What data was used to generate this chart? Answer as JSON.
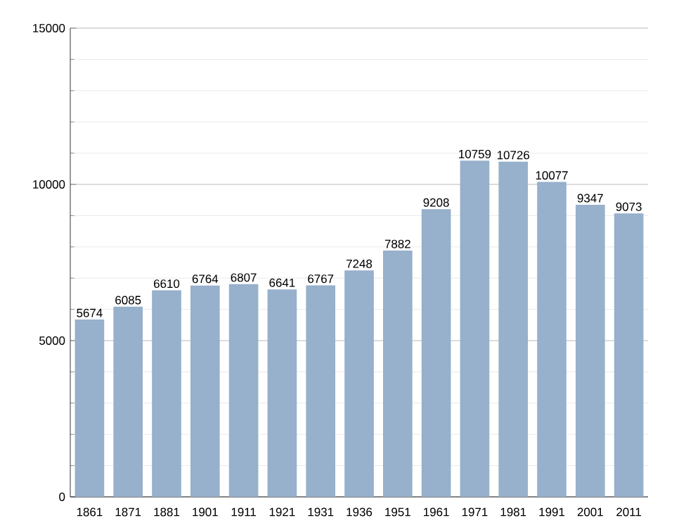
{
  "chart_data": {
    "type": "bar",
    "categories": [
      "1861",
      "1871",
      "1881",
      "1901",
      "1911",
      "1921",
      "1931",
      "1936",
      "1951",
      "1961",
      "1971",
      "1981",
      "1991",
      "2001",
      "2011"
    ],
    "values": [
      5674,
      6085,
      6610,
      6764,
      6807,
      6641,
      6767,
      7248,
      7882,
      9208,
      10759,
      10726,
      10077,
      9347,
      9073
    ],
    "color": "#97b0cb",
    "ylim": [
      0,
      15000
    ],
    "yticks": [
      0,
      5000,
      10000,
      15000
    ],
    "grid": "y",
    "data_labels": true
  }
}
